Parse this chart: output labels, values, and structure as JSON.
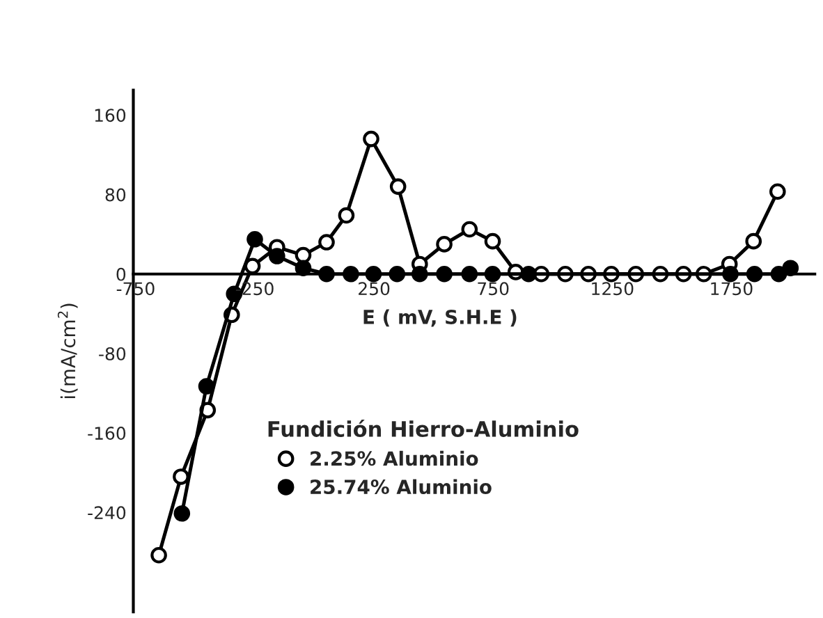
{
  "chart_data": {
    "type": "line",
    "xlabel": "E ( mV, S.H.E )",
    "ylabel": "i(mA/cm$^{2}$)",
    "legend_title": "Fundición Hierro-Aluminio",
    "xlim": [
      -760,
      2100
    ],
    "ylim": [
      -340,
      185
    ],
    "xticks": [
      {
        "value": -750,
        "label": "-750"
      },
      {
        "value": -250,
        "label": "-250"
      },
      250,
      750,
      1250,
      1750
    ],
    "yticks": [
      {
        "value": -240,
        "label": "-240"
      },
      {
        "value": -160,
        "label": "-160"
      },
      {
        "value": -80,
        "label": "-80"
      },
      0,
      80,
      160
    ],
    "grid": false,
    "legend": "center",
    "marker": "circle",
    "line_style": "solid",
    "series": [
      {
        "name": "2.25% Aluminio",
        "color": "#000000",
        "x": [
          -653,
          -560,
          -448,
          -347,
          -260,
          -157,
          -47,
          51,
          134,
          238,
          351,
          442,
          545,
          651,
          748,
          845,
          952,
          1053,
          1150,
          1246,
          1349,
          1452,
          1549,
          1634,
          1742,
          1843,
          1944
        ],
        "values": [
          -283,
          -204,
          -137,
          -41,
          8,
          27,
          19,
          32,
          59,
          136,
          88,
          10,
          30,
          45,
          33,
          2,
          0,
          0,
          0,
          0,
          0,
          0,
          0,
          0,
          10,
          33,
          83
        ]
      },
      {
        "name": "25.74% Aluminio",
        "color": "#000000",
        "x": [
          -556,
          -453,
          -337,
          -250,
          -157,
          -47,
          51,
          153,
          248,
          347,
          442,
          545,
          651,
          748,
          899,
          1746,
          1847,
          1949,
          1998
        ],
        "values": [
          -241,
          -113,
          -20,
          35,
          18,
          6,
          0,
          0,
          0,
          0,
          0,
          0,
          0,
          0,
          0,
          0,
          0,
          0,
          6
        ]
      }
    ]
  }
}
